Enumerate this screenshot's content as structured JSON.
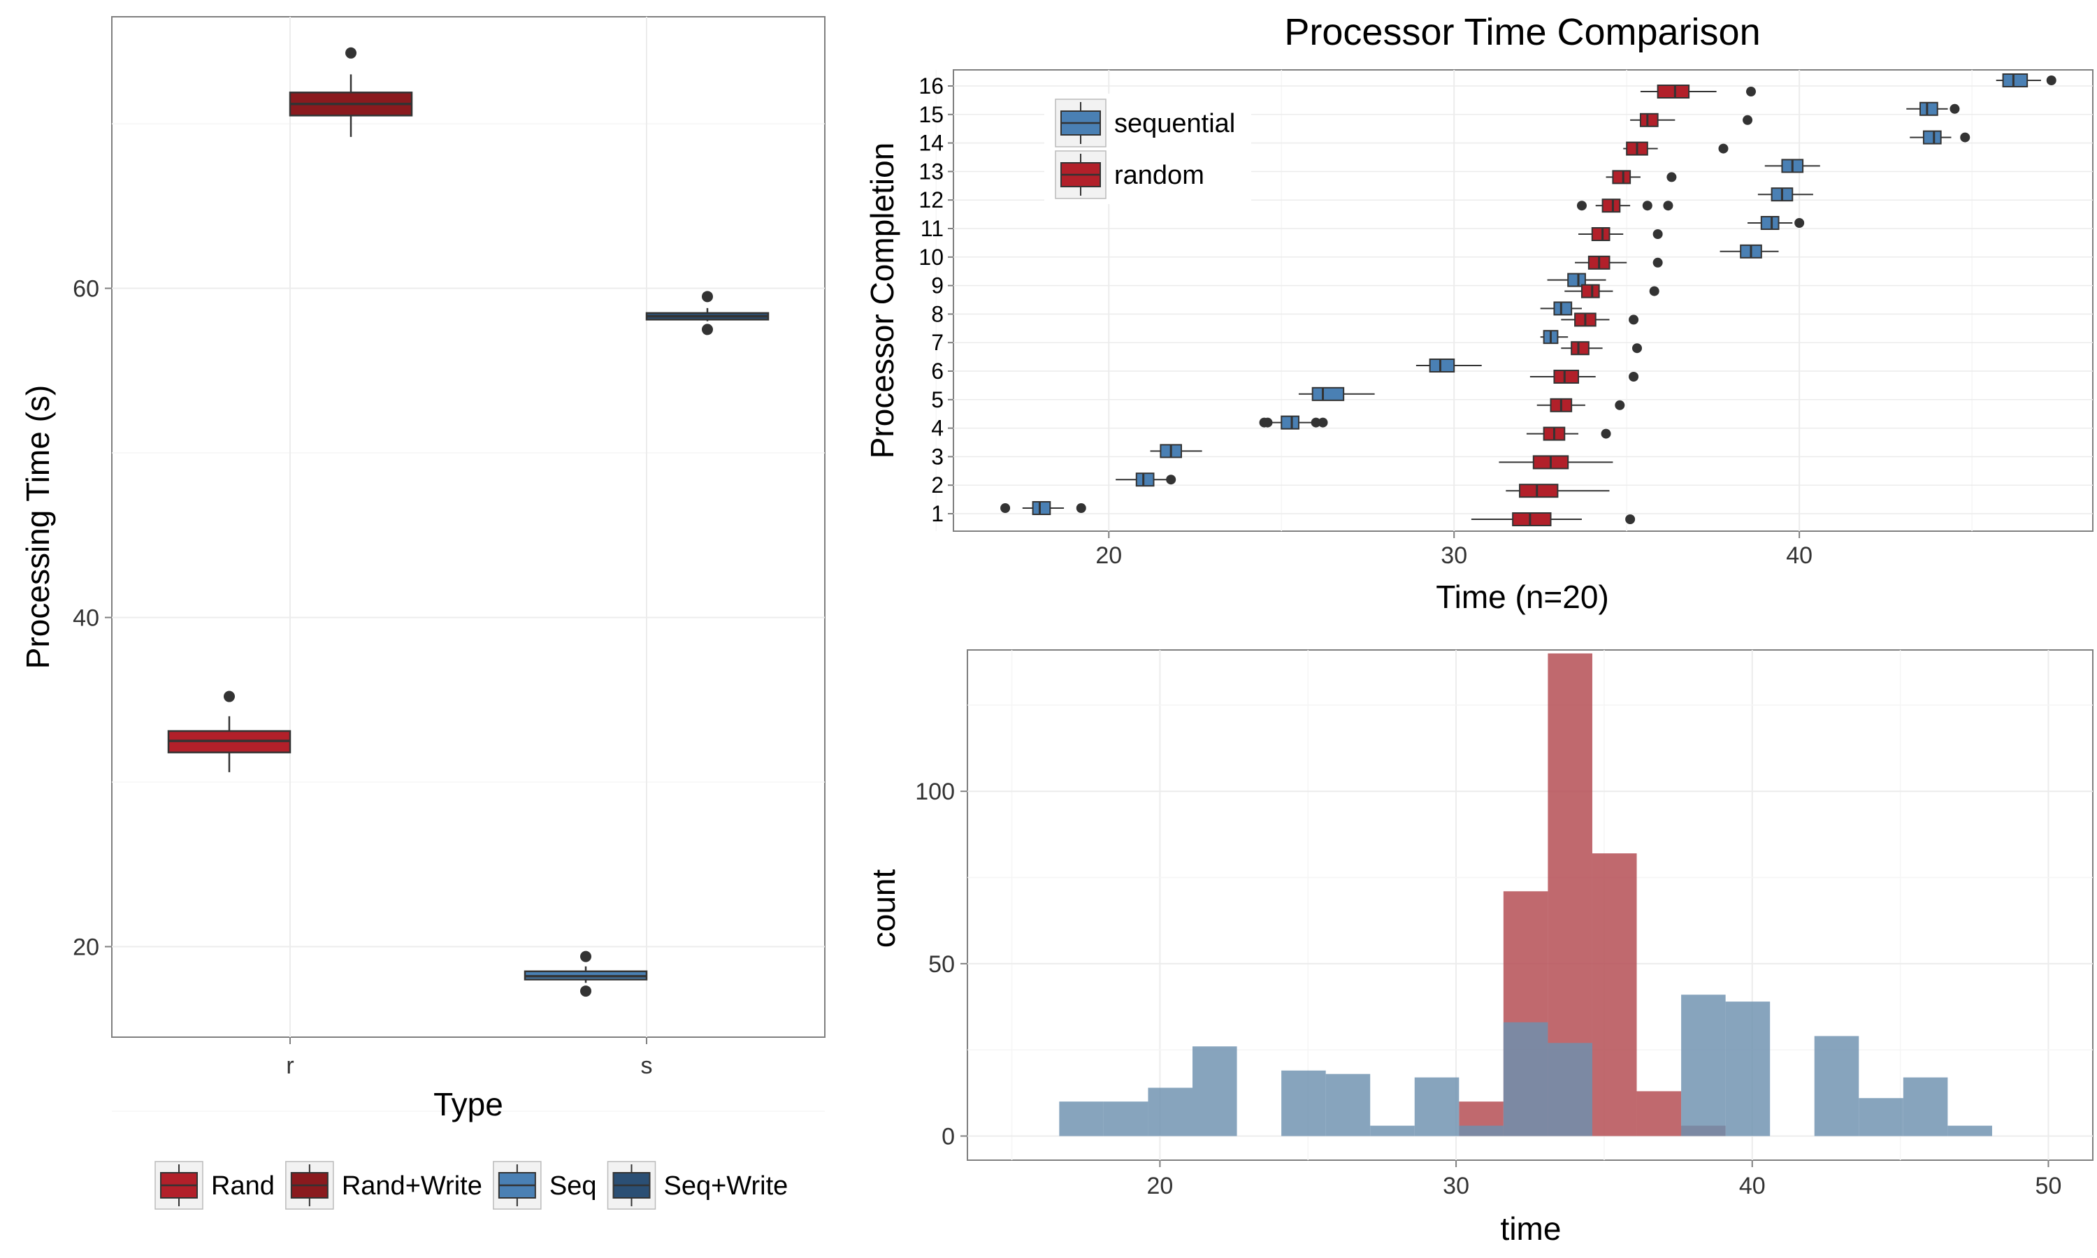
{
  "chart_data": [
    {
      "id": "type-boxplot",
      "type": "boxplot",
      "title": "",
      "xlabel": "Type",
      "ylabel": "Processing Time (s)",
      "categories": [
        "r",
        "s"
      ],
      "ylim": [
        14.5,
        76.5
      ],
      "yticks": [
        20,
        40,
        60
      ],
      "ytick_labels": [
        "20",
        "40",
        "60"
      ],
      "grid": true,
      "legend": {
        "placement": "bottom",
        "entries": [
          {
            "label": "Rand",
            "color": "#B2202A"
          },
          {
            "label": "Rand+Write",
            "color": "#8A1A1E"
          },
          {
            "label": "Seq",
            "color": "#4A80B4"
          },
          {
            "label": "Seq+Write",
            "color": "#2B4F74"
          }
        ]
      },
      "boxes": [
        {
          "category": "r",
          "group": "Rand",
          "color": "#B2202A",
          "whisker_low": 30.6,
          "q1": 31.8,
          "median": 32.5,
          "q3": 33.1,
          "whisker_high": 34.0,
          "outliers": [
            35.2
          ]
        },
        {
          "category": "r",
          "group": "Rand+Write",
          "color": "#8A1A1E",
          "whisker_low": 69.2,
          "q1": 70.5,
          "median": 71.2,
          "q3": 71.9,
          "whisker_high": 73.0,
          "outliers": [
            74.3
          ]
        },
        {
          "category": "s",
          "group": "Seq",
          "color": "#4A80B4",
          "whisker_low": 17.8,
          "q1": 18.0,
          "median": 18.2,
          "q3": 18.5,
          "whisker_high": 18.8,
          "outliers": [
            19.4,
            17.3
          ]
        },
        {
          "category": "s",
          "group": "Seq+Write",
          "color": "#2B4F74",
          "whisker_low": 58.0,
          "q1": 58.1,
          "median": 58.3,
          "q3": 58.5,
          "whisker_high": 58.8,
          "outliers": [
            59.5,
            57.5
          ]
        }
      ]
    },
    {
      "id": "processor-boxplot",
      "type": "boxplot-horizontal",
      "title": "Processor Time Comparison",
      "xlabel": "Time (n=20)",
      "ylabel": "Processor Completion",
      "xlim": [
        15.5,
        48.5
      ],
      "xticks": [
        20,
        30,
        40
      ],
      "xtick_labels": [
        "20",
        "30",
        "40"
      ],
      "categories": [
        "1",
        "2",
        "3",
        "4",
        "5",
        "6",
        "7",
        "8",
        "9",
        "10",
        "11",
        "12",
        "13",
        "14",
        "15",
        "16"
      ],
      "grid": true,
      "legend": {
        "placement": "top-left",
        "entries": [
          {
            "label": "sequential",
            "color": "#4A80B4"
          },
          {
            "label": "random",
            "color": "#B2202A"
          }
        ]
      },
      "series": [
        {
          "name": "sequential",
          "color": "#4A80B4",
          "boxes": [
            {
              "processor": 1,
              "whisker_low": 17.5,
              "q1": 17.8,
              "median": 18.0,
              "q3": 18.3,
              "whisker_high": 18.7,
              "outliers": [
                17.0,
                19.2
              ]
            },
            {
              "processor": 2,
              "whisker_low": 20.2,
              "q1": 20.8,
              "median": 21.0,
              "q3": 21.3,
              "whisker_high": 21.7,
              "outliers": [
                21.8
              ]
            },
            {
              "processor": 3,
              "whisker_low": 21.2,
              "q1": 21.5,
              "median": 21.8,
              "q3": 22.1,
              "whisker_high": 22.7,
              "outliers": []
            },
            {
              "processor": 4,
              "whisker_low": 24.7,
              "q1": 25.0,
              "median": 25.3,
              "q3": 25.5,
              "whisker_high": 25.9,
              "outliers": [
                24.5,
                24.6,
                26.0,
                26.2
              ]
            },
            {
              "processor": 5,
              "whisker_low": 25.5,
              "q1": 25.9,
              "median": 26.2,
              "q3": 26.8,
              "whisker_high": 27.7,
              "outliers": []
            },
            {
              "processor": 6,
              "whisker_low": 28.9,
              "q1": 29.3,
              "median": 29.6,
              "q3": 30.0,
              "whisker_high": 30.8,
              "outliers": []
            },
            {
              "processor": 7,
              "whisker_low": 32.5,
              "q1": 32.6,
              "median": 32.8,
              "q3": 33.0,
              "whisker_high": 33.3,
              "outliers": []
            },
            {
              "processor": 8,
              "whisker_low": 32.5,
              "q1": 32.9,
              "median": 33.1,
              "q3": 33.4,
              "whisker_high": 33.7,
              "outliers": []
            },
            {
              "processor": 9,
              "whisker_low": 32.7,
              "q1": 33.3,
              "median": 33.6,
              "q3": 33.8,
              "whisker_high": 34.4,
              "outliers": []
            },
            {
              "processor": 10,
              "whisker_low": 37.7,
              "q1": 38.3,
              "median": 38.6,
              "q3": 38.9,
              "whisker_high": 39.4,
              "outliers": []
            },
            {
              "processor": 11,
              "whisker_low": 38.5,
              "q1": 38.9,
              "median": 39.2,
              "q3": 39.4,
              "whisker_high": 39.8,
              "outliers": [
                40.0
              ]
            },
            {
              "processor": 12,
              "whisker_low": 38.8,
              "q1": 39.2,
              "median": 39.5,
              "q3": 39.8,
              "whisker_high": 40.4,
              "outliers": []
            },
            {
              "processor": 13,
              "whisker_low": 39.0,
              "q1": 39.5,
              "median": 39.8,
              "q3": 40.1,
              "whisker_high": 40.6,
              "outliers": []
            },
            {
              "processor": 14,
              "whisker_low": 43.2,
              "q1": 43.6,
              "median": 43.9,
              "q3": 44.1,
              "whisker_high": 44.4,
              "outliers": [
                44.8
              ]
            },
            {
              "processor": 15,
              "whisker_low": 43.1,
              "q1": 43.5,
              "median": 43.7,
              "q3": 44.0,
              "whisker_high": 44.3,
              "outliers": [
                44.5
              ]
            },
            {
              "processor": 16,
              "whisker_low": 45.7,
              "q1": 45.9,
              "median": 46.2,
              "q3": 46.6,
              "whisker_high": 47.0,
              "outliers": [
                47.3
              ]
            }
          ]
        },
        {
          "name": "random",
          "color": "#B2202A",
          "boxes": [
            {
              "processor": 1,
              "whisker_low": 30.5,
              "q1": 31.7,
              "median": 32.2,
              "q3": 32.8,
              "whisker_high": 33.7,
              "outliers": [
                35.1
              ]
            },
            {
              "processor": 2,
              "whisker_low": 31.5,
              "q1": 31.9,
              "median": 32.4,
              "q3": 33.0,
              "whisker_high": 34.5,
              "outliers": []
            },
            {
              "processor": 3,
              "whisker_low": 31.3,
              "q1": 32.3,
              "median": 32.8,
              "q3": 33.3,
              "whisker_high": 34.6,
              "outliers": []
            },
            {
              "processor": 4,
              "whisker_low": 32.1,
              "q1": 32.6,
              "median": 32.9,
              "q3": 33.2,
              "whisker_high": 33.6,
              "outliers": [
                34.4
              ]
            },
            {
              "processor": 5,
              "whisker_low": 32.4,
              "q1": 32.8,
              "median": 33.1,
              "q3": 33.4,
              "whisker_high": 33.8,
              "outliers": [
                34.8
              ]
            },
            {
              "processor": 6,
              "whisker_low": 32.2,
              "q1": 32.9,
              "median": 33.2,
              "q3": 33.6,
              "whisker_high": 34.1,
              "outliers": [
                35.2
              ]
            },
            {
              "processor": 7,
              "whisker_low": 33.1,
              "q1": 33.4,
              "median": 33.6,
              "q3": 33.9,
              "whisker_high": 34.3,
              "outliers": [
                35.3
              ]
            },
            {
              "processor": 8,
              "whisker_low": 33.1,
              "q1": 33.5,
              "median": 33.8,
              "q3": 34.1,
              "whisker_high": 34.5,
              "outliers": [
                35.2
              ]
            },
            {
              "processor": 9,
              "whisker_low": 33.2,
              "q1": 33.7,
              "median": 34.0,
              "q3": 34.2,
              "whisker_high": 34.6,
              "outliers": [
                35.8
              ]
            },
            {
              "processor": 10,
              "whisker_low": 33.5,
              "q1": 33.9,
              "median": 34.2,
              "q3": 34.5,
              "whisker_high": 35.0,
              "outliers": [
                35.9
              ]
            },
            {
              "processor": 11,
              "whisker_low": 33.6,
              "q1": 34.0,
              "median": 34.3,
              "q3": 34.5,
              "whisker_high": 34.9,
              "outliers": [
                35.9
              ]
            },
            {
              "processor": 12,
              "whisker_low": 34.1,
              "q1": 34.3,
              "median": 34.6,
              "q3": 34.8,
              "whisker_high": 35.1,
              "outliers": [
                33.7,
                35.6,
                36.2
              ]
            },
            {
              "processor": 13,
              "whisker_low": 34.4,
              "q1": 34.6,
              "median": 34.9,
              "q3": 35.1,
              "whisker_high": 35.4,
              "outliers": [
                36.3
              ]
            },
            {
              "processor": 14,
              "whisker_low": 34.9,
              "q1": 35.0,
              "median": 35.3,
              "q3": 35.6,
              "whisker_high": 35.9,
              "outliers": [
                37.8
              ]
            },
            {
              "processor": 15,
              "whisker_low": 35.1,
              "q1": 35.4,
              "median": 35.6,
              "q3": 35.9,
              "whisker_high": 36.4,
              "outliers": [
                38.5
              ]
            },
            {
              "processor": 16,
              "whisker_low": 35.4,
              "q1": 35.9,
              "median": 36.4,
              "q3": 36.8,
              "whisker_high": 37.6,
              "outliers": [
                38.6
              ]
            }
          ]
        }
      ]
    },
    {
      "id": "time-histogram",
      "type": "histogram",
      "title": "",
      "xlabel": "time",
      "ylabel": "count",
      "xlim": [
        13.5,
        51.5
      ],
      "ylim": [
        -7,
        141
      ],
      "xticks": [
        20,
        30,
        40,
        50
      ],
      "xtick_labels": [
        "20",
        "30",
        "40",
        "50"
      ],
      "yticks": [
        0,
        50,
        100
      ],
      "ytick_labels": [
        "0",
        "50",
        "100"
      ],
      "bin_width": 1.5,
      "grid": true,
      "series": [
        {
          "name": "random",
          "color": "#B2484E",
          "bins": [
            {
              "x0": 30.1,
              "count": 10
            },
            {
              "x0": 31.6,
              "count": 71
            },
            {
              "x0": 33.1,
              "count": 140
            },
            {
              "x0": 34.6,
              "count": 82
            },
            {
              "x0": 36.1,
              "count": 13
            },
            {
              "x0": 37.6,
              "count": 3
            }
          ]
        },
        {
          "name": "sequential",
          "color": "#6D90AE",
          "bins": [
            {
              "x0": 16.6,
              "count": 10
            },
            {
              "x0": 18.1,
              "count": 10
            },
            {
              "x0": 19.6,
              "count": 14
            },
            {
              "x0": 21.1,
              "count": 26
            },
            {
              "x0": 24.1,
              "count": 19
            },
            {
              "x0": 25.6,
              "count": 18
            },
            {
              "x0": 27.1,
              "count": 3
            },
            {
              "x0": 28.6,
              "count": 17
            },
            {
              "x0": 30.1,
              "count": 3
            },
            {
              "x0": 31.6,
              "count": 33
            },
            {
              "x0": 33.1,
              "count": 27
            },
            {
              "x0": 37.6,
              "count": 41
            },
            {
              "x0": 39.1,
              "count": 39
            },
            {
              "x0": 42.1,
              "count": 29
            },
            {
              "x0": 43.6,
              "count": 11
            },
            {
              "x0": 45.1,
              "count": 17
            },
            {
              "x0": 46.6,
              "count": 3
            }
          ]
        }
      ]
    }
  ]
}
